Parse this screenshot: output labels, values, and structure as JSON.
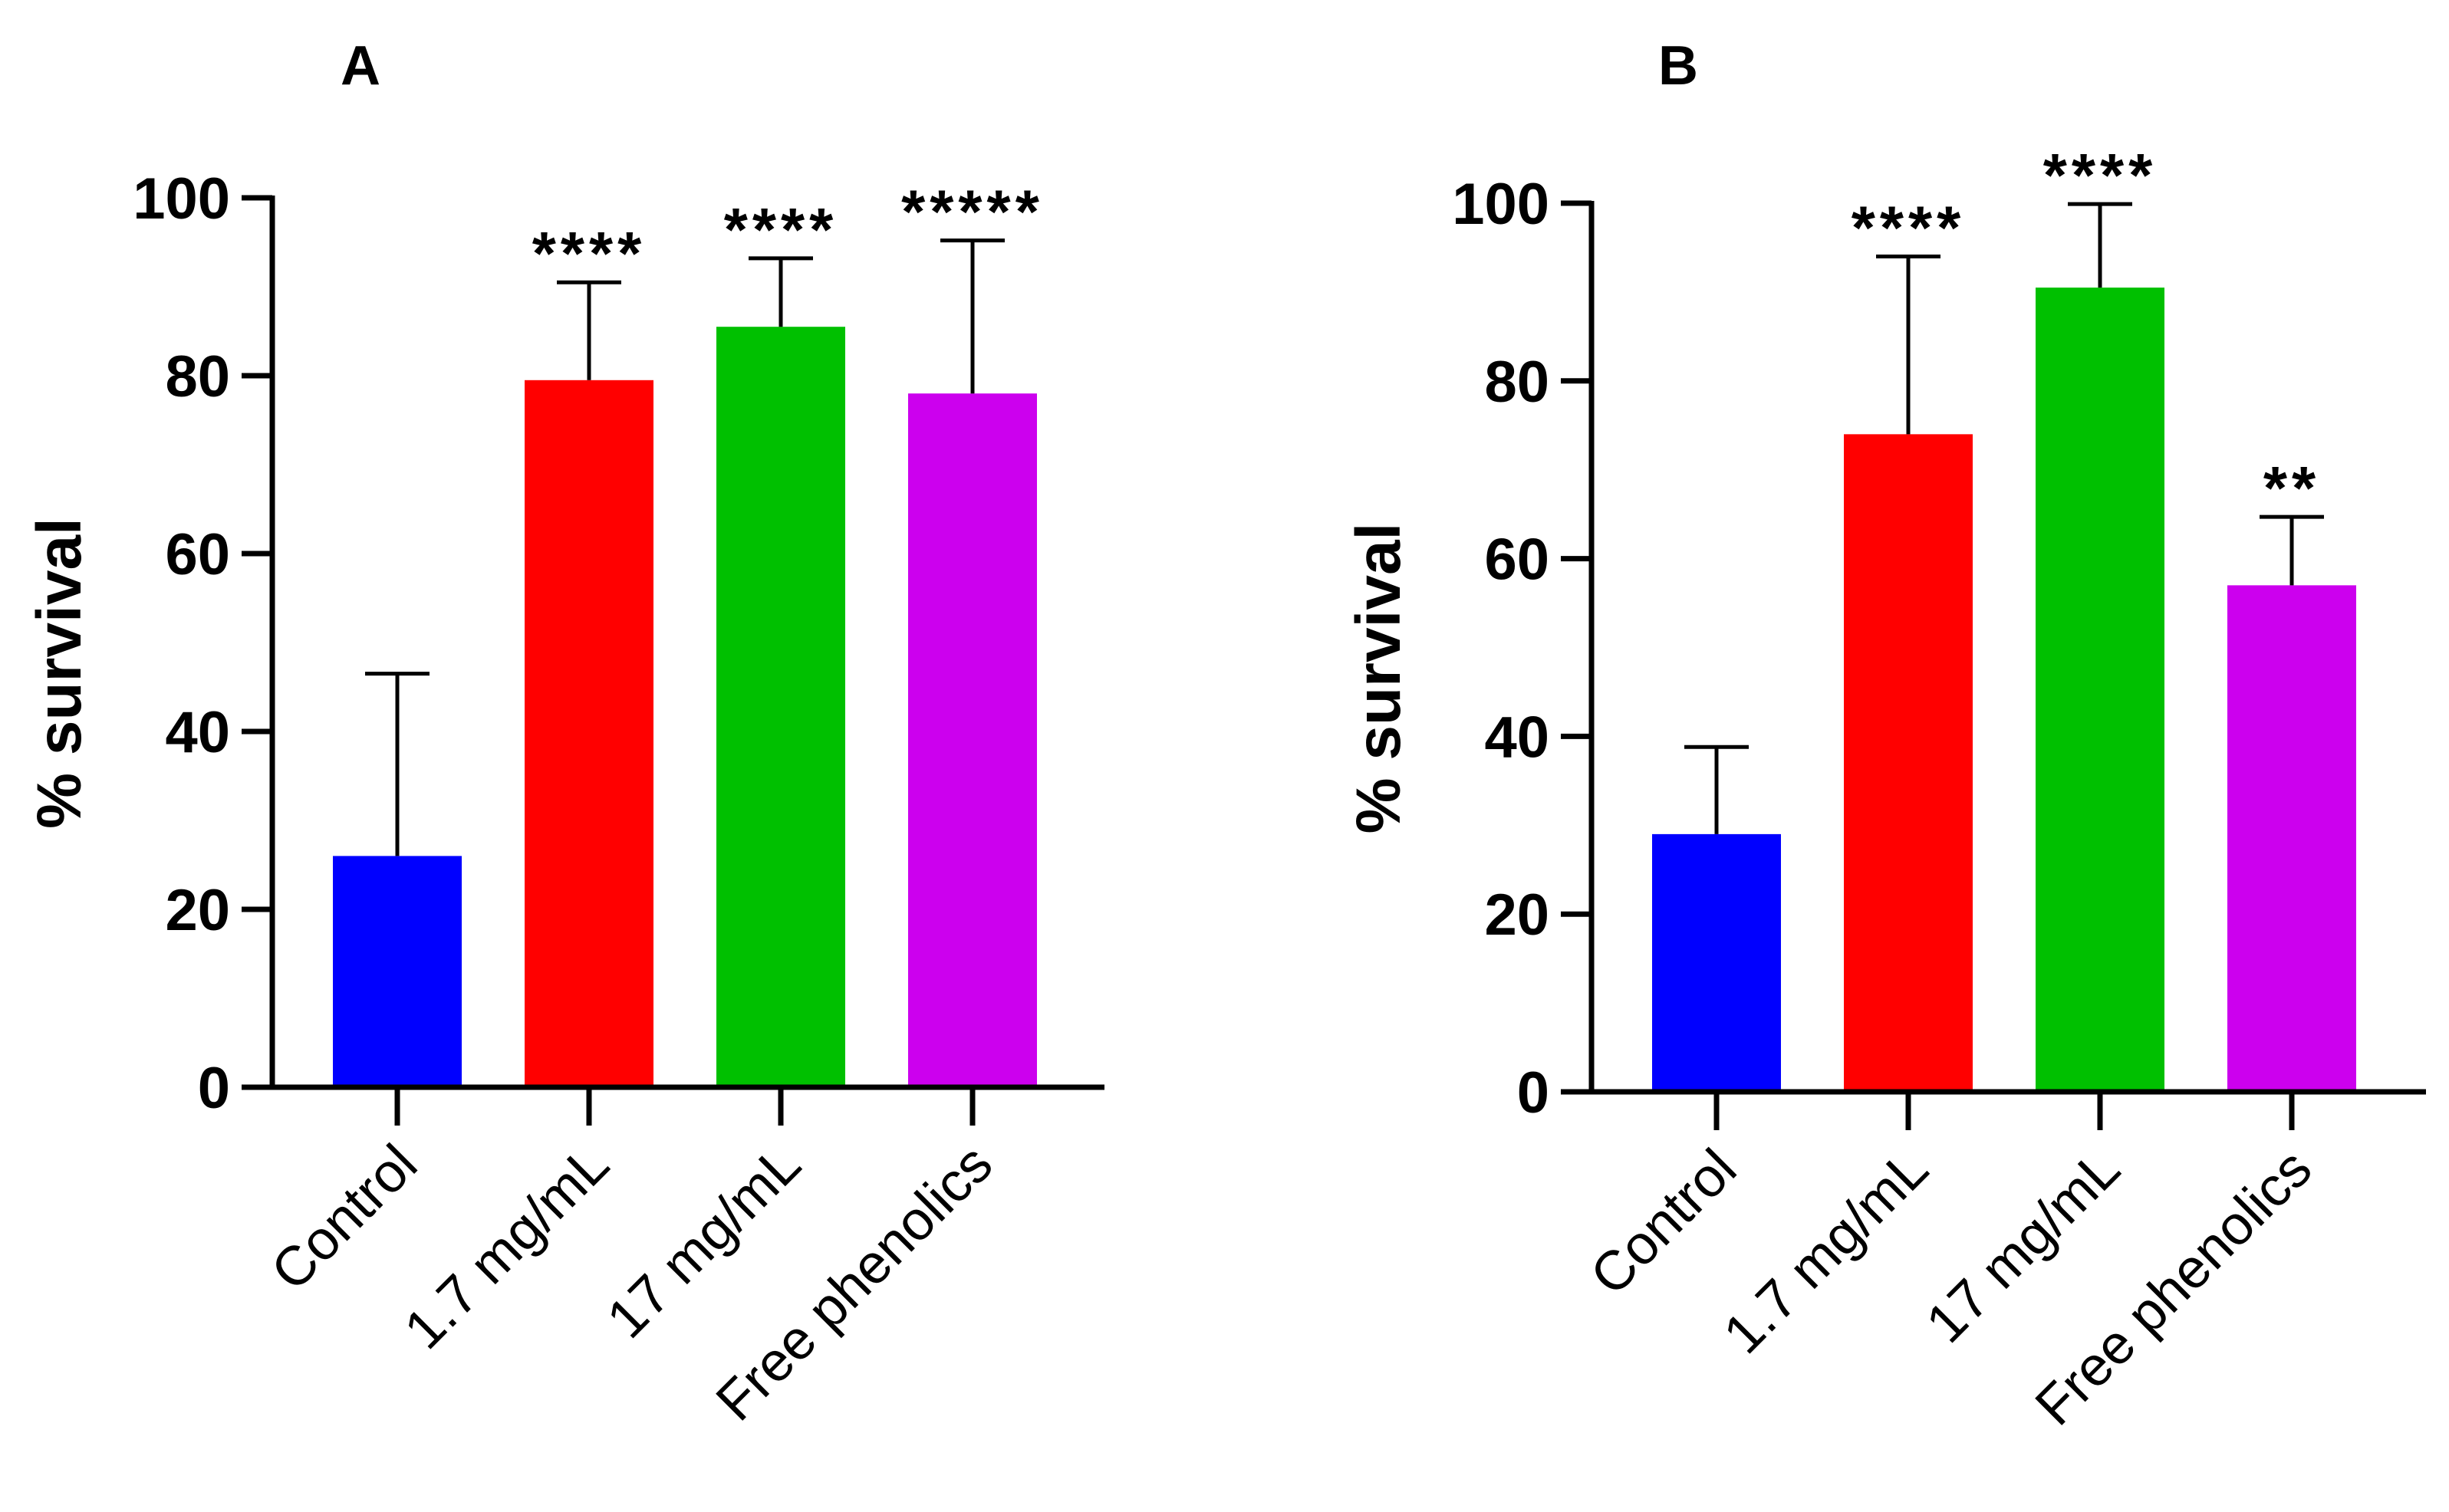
{
  "figure": {
    "description_title": "Percent survival by treatment"
  },
  "chart_data": [
    {
      "panel": "A",
      "type": "bar",
      "title": "A",
      "xlabel": "",
      "ylabel": "% survival",
      "ylim": [
        0,
        100
      ],
      "yticks": [
        0,
        20,
        40,
        60,
        80,
        100
      ],
      "categories": [
        "Control",
        "1.7 mg/mL",
        "17 mg/mL",
        "Free phenolics"
      ],
      "values": [
        26,
        79.5,
        85.5,
        78
      ],
      "errors": [
        20.5,
        11,
        7.7,
        17.2
      ],
      "colors": [
        "#0000ff",
        "#ff0000",
        "#00c000",
        "#cc00ee"
      ],
      "significance": [
        "",
        "****",
        "****",
        "*****"
      ]
    },
    {
      "panel": "B",
      "type": "bar",
      "title": "B",
      "xlabel": "",
      "ylabel": "% survival",
      "ylim": [
        0,
        100
      ],
      "yticks": [
        0,
        20,
        40,
        60,
        80,
        100
      ],
      "categories": [
        "Control",
        "1.7 mg/mL",
        "17 mg/mL",
        "Free phenolics"
      ],
      "values": [
        29,
        74,
        90.5,
        57
      ],
      "errors": [
        9.8,
        20,
        9.4,
        7.7
      ],
      "colors": [
        "#0000ff",
        "#ff0000",
        "#00c000",
        "#cc00ee"
      ],
      "significance": [
        "",
        "****",
        "****",
        "**"
      ]
    }
  ]
}
